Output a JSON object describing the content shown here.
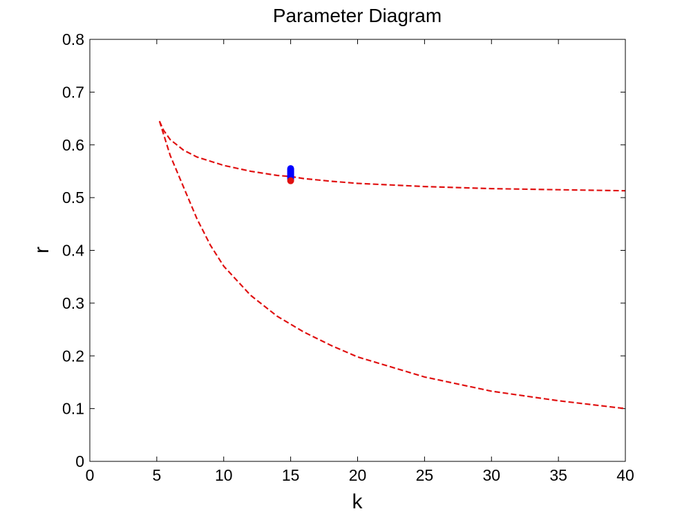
{
  "chart_data": {
    "type": "line",
    "title": "Parameter Diagram",
    "xlabel": "k",
    "ylabel": "r",
    "xlim": [
      0,
      40
    ],
    "ylim": [
      0,
      0.8
    ],
    "xticks": [
      0,
      5,
      10,
      15,
      20,
      25,
      30,
      35,
      40
    ],
    "xtick_labels": [
      "0",
      "5",
      "10",
      "15",
      "20",
      "25",
      "30",
      "35",
      "40"
    ],
    "yticks": [
      0,
      0.1,
      0.2,
      0.3,
      0.4,
      0.5,
      0.6,
      0.7,
      0.8
    ],
    "ytick_labels": [
      "0",
      "0.1",
      "0.2",
      "0.3",
      "0.4",
      "0.5",
      "0.6",
      "0.7",
      "0.8"
    ],
    "grid": false,
    "series": [
      {
        "style": "dashed",
        "color": "#e01010",
        "x": [
          5.2,
          5.5,
          6,
          7,
          8,
          10,
          12,
          14,
          15,
          16,
          18,
          20,
          25,
          30,
          35,
          40
        ],
        "y": [
          0.645,
          0.628,
          0.61,
          0.59,
          0.577,
          0.561,
          0.55,
          0.542,
          0.54,
          0.536,
          0.531,
          0.527,
          0.521,
          0.517,
          0.515,
          0.513
        ]
      },
      {
        "style": "dashed",
        "color": "#e01010",
        "x": [
          5.2,
          6,
          7,
          8,
          9,
          10,
          12,
          14,
          15,
          16,
          18,
          20,
          25,
          30,
          35,
          40
        ],
        "y": [
          0.645,
          0.58,
          0.52,
          0.46,
          0.41,
          0.37,
          0.315,
          0.275,
          0.26,
          0.245,
          0.22,
          0.198,
          0.16,
          0.133,
          0.115,
          0.1
        ]
      }
    ],
    "markers": [
      {
        "shape": "capsule",
        "color": "#0000ff",
        "x": 15,
        "y_range": [
          0.535,
          0.555
        ]
      },
      {
        "shape": "dot",
        "color": "#e01010",
        "x": 15,
        "y": 0.532
      }
    ]
  }
}
